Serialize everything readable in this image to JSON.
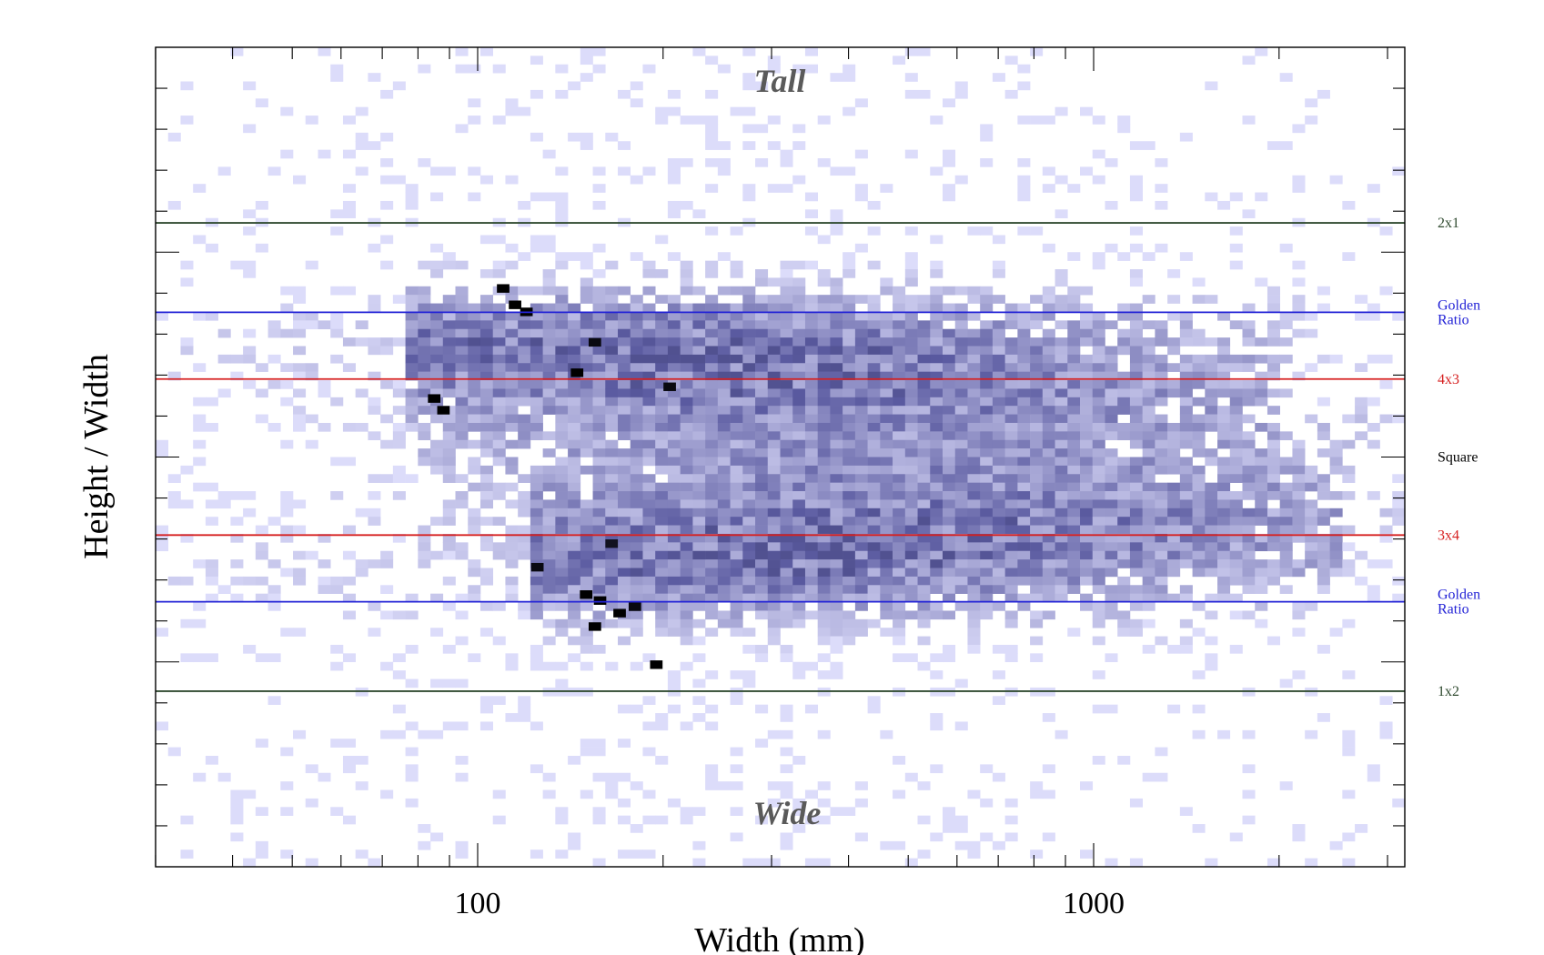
{
  "chart_data": {
    "type": "heatmap",
    "title": "",
    "xlabel": "Width (mm)",
    "ylabel": "Height / Width",
    "x_scale": "log",
    "xlim": [
      30,
      3200
    ],
    "ylim": [
      -1.75,
      1.75
    ],
    "x_tick_labels": [
      {
        "value": 100,
        "label": "100"
      },
      {
        "value": 1000,
        "label": "1000"
      }
    ],
    "annotations": {
      "top": "Tall",
      "bottom": "Wide"
    },
    "reference_lines": [
      {
        "name": "2x1",
        "label": [
          "2x1"
        ],
        "ratio": 2.0,
        "color": "#2f4a2f"
      },
      {
        "name": "golden-top",
        "label": [
          "Golden",
          "Ratio"
        ],
        "ratio": 1.618,
        "color": "#2323d6"
      },
      {
        "name": "4x3",
        "label": [
          "4x3"
        ],
        "ratio": 1.333,
        "color": "#d62020"
      },
      {
        "name": "square",
        "label": [
          "Square"
        ],
        "ratio": 1.0,
        "color": "#000000",
        "line": false
      },
      {
        "name": "3x4",
        "label": [
          "3x4"
        ],
        "ratio": 0.75,
        "color": "#d62020"
      },
      {
        "name": "golden-bottom",
        "label": [
          "Golden",
          "Ratio"
        ],
        "ratio": 0.618,
        "color": "#2323d6"
      },
      {
        "name": "1x2",
        "label": [
          "1x2"
        ],
        "ratio": 0.5,
        "color": "#2f4a2f"
      }
    ],
    "colors": {
      "low": "#dcdcfa",
      "high": "#000000",
      "mid": "#5a5aa0"
    },
    "density_bands": [
      {
        "ratio": 1.52,
        "width_range": [
          75,
          2200
        ],
        "peak_width": 150,
        "strength": 0.75
      },
      {
        "ratio": 1.28,
        "width_range": [
          75,
          2000
        ],
        "peak_width": 400,
        "strength": 0.6
      },
      {
        "ratio": 0.78,
        "width_range": [
          120,
          2500
        ],
        "peak_width": 600,
        "strength": 0.65
      },
      {
        "ratio": 0.66,
        "width_range": [
          120,
          2500
        ],
        "peak_width": 200,
        "strength": 0.7
      },
      {
        "ratio": 1.0,
        "width_range": [
          80,
          3000
        ],
        "peak_width": 500,
        "strength": 0.45
      }
    ],
    "hot_cells": [
      {
        "width": 110,
        "ratio": 1.72,
        "count": 10
      },
      {
        "width": 115,
        "ratio": 1.65,
        "count": 10
      },
      {
        "width": 120,
        "ratio": 1.62,
        "count": 10
      },
      {
        "width": 145,
        "ratio": 1.36,
        "count": 10
      },
      {
        "width": 85,
        "ratio": 1.25,
        "count": 10
      },
      {
        "width": 88,
        "ratio": 1.2,
        "count": 10
      },
      {
        "width": 155,
        "ratio": 1.49,
        "count": 9
      },
      {
        "width": 205,
        "ratio": 1.3,
        "count": 9
      },
      {
        "width": 150,
        "ratio": 0.63,
        "count": 10
      },
      {
        "width": 158,
        "ratio": 0.62,
        "count": 10
      },
      {
        "width": 170,
        "ratio": 0.6,
        "count": 10
      },
      {
        "width": 155,
        "ratio": 0.58,
        "count": 10
      },
      {
        "width": 180,
        "ratio": 0.61,
        "count": 9
      },
      {
        "width": 125,
        "ratio": 0.68,
        "count": 9
      },
      {
        "width": 195,
        "ratio": 0.53,
        "count": 10
      },
      {
        "width": 165,
        "ratio": 0.73,
        "count": 8
      }
    ]
  }
}
